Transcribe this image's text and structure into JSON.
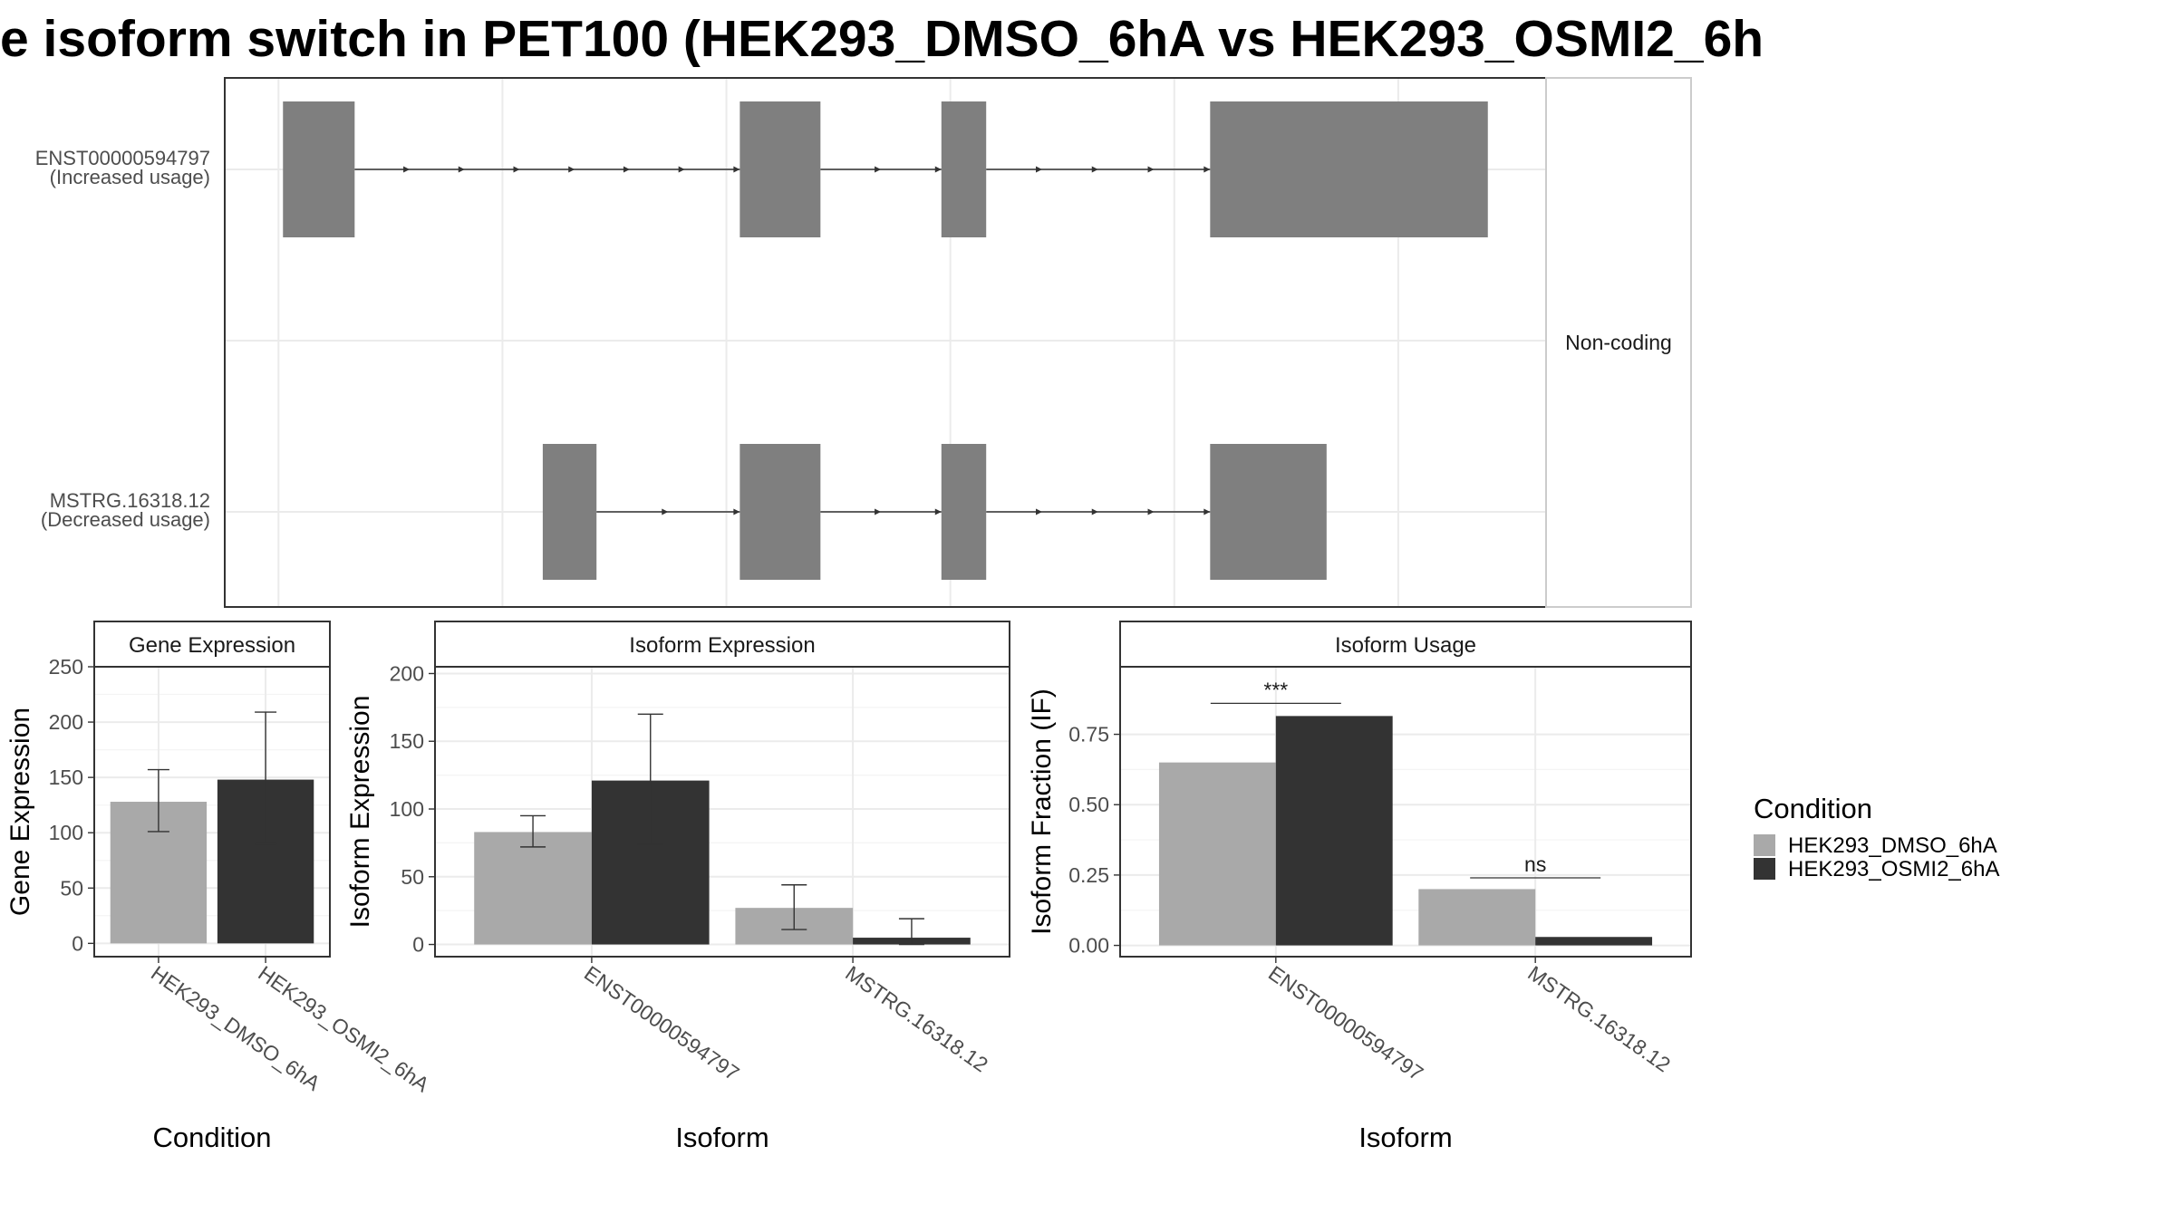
{
  "title": "e isoform switch in PET100 (HEK293_DMSO_6hA vs HEK293_OSMI2_6h",
  "colors": {
    "dmso": "#a9a9a9",
    "osmi": "#333333",
    "exon": "#7f7f7f",
    "grid": "#ebebeb",
    "frame": "#333333",
    "strip_bg": "#ffffff"
  },
  "chart_data": [
    {
      "type": "gene-structure",
      "facet_label": "Non-coding",
      "transcripts": [
        {
          "id": "ENST00000594797",
          "label_line1": "ENST00000594797",
          "label_line2": "(Increased usage)",
          "exons": [
            [
              1,
              17
            ],
            [
              103,
              121
            ],
            [
              148,
              158
            ],
            [
              208,
              270
            ]
          ]
        },
        {
          "id": "MSTRG.16318.12",
          "label_line1": "MSTRG.16318.12",
          "label_line2": "(Decreased usage)",
          "exons": [
            [
              59,
              71
            ],
            [
              103,
              121
            ],
            [
              148,
              158
            ],
            [
              208,
              234
            ]
          ]
        }
      ],
      "xlim": [
        -12,
        283
      ]
    },
    {
      "type": "bar",
      "strip": "Gene Expression",
      "xlabel": "Condition",
      "ylabel": "Gene Expression",
      "categories": [
        "HEK293_DMSO_6hA",
        "HEK293_OSMI2_6hA"
      ],
      "series": [
        {
          "name": "HEK293_DMSO_6hA",
          "values": [
            128,
            null
          ],
          "err_low": [
            101,
            null
          ],
          "err_high": [
            157,
            null
          ]
        },
        {
          "name": "HEK293_OSMI2_6hA",
          "values": [
            null,
            148
          ],
          "err_low": [
            null,
            90
          ],
          "err_high": [
            null,
            209
          ]
        }
      ],
      "ylim": [
        -12,
        250
      ],
      "yticks": [
        0,
        50,
        100,
        150,
        200,
        250
      ],
      "ytick_labels": [
        "0",
        "50",
        "100",
        "150",
        "200",
        "250"
      ]
    },
    {
      "type": "bar",
      "strip": "Isoform Expression",
      "xlabel": "Isoform",
      "ylabel": "Isoform Expression",
      "categories": [
        "ENST00000594797",
        "MSTRG.16318.12"
      ],
      "series": [
        {
          "name": "HEK293_DMSO_6hA",
          "values": [
            83,
            27
          ],
          "err_low": [
            72,
            11
          ],
          "err_high": [
            95,
            44
          ]
        },
        {
          "name": "HEK293_OSMI2_6hA",
          "values": [
            121,
            5
          ],
          "err_low": [
            74,
            0
          ],
          "err_high": [
            170,
            19
          ]
        }
      ],
      "ylim": [
        -9,
        205
      ],
      "yticks": [
        0,
        50,
        100,
        150,
        200
      ],
      "ytick_labels": [
        "0",
        "50",
        "100",
        "150",
        "200"
      ]
    },
    {
      "type": "bar",
      "strip": "Isoform Usage",
      "xlabel": "Isoform",
      "ylabel": "Isoform Fraction (IF)",
      "categories": [
        "ENST00000594797",
        "MSTRG.16318.12"
      ],
      "series": [
        {
          "name": "HEK293_DMSO_6hA",
          "values": [
            0.65,
            0.2
          ]
        },
        {
          "name": "HEK293_OSMI2_6hA",
          "values": [
            0.815,
            0.03
          ]
        }
      ],
      "significance": [
        {
          "category_index": 0,
          "label": "***",
          "y": 0.86
        },
        {
          "category_index": 1,
          "label": "ns",
          "y": 0.24
        }
      ],
      "ylim": [
        -0.04,
        0.99
      ],
      "yticks": [
        0,
        0.25,
        0.5,
        0.75
      ],
      "ytick_labels": [
        "0.00",
        "0.25",
        "0.50",
        "0.75"
      ]
    }
  ],
  "legend": {
    "title": "Condition",
    "items": [
      {
        "label": "HEK293_DMSO_6hA",
        "color": "#a9a9a9"
      },
      {
        "label": "HEK293_OSMI2_6hA",
        "color": "#333333"
      }
    ]
  }
}
